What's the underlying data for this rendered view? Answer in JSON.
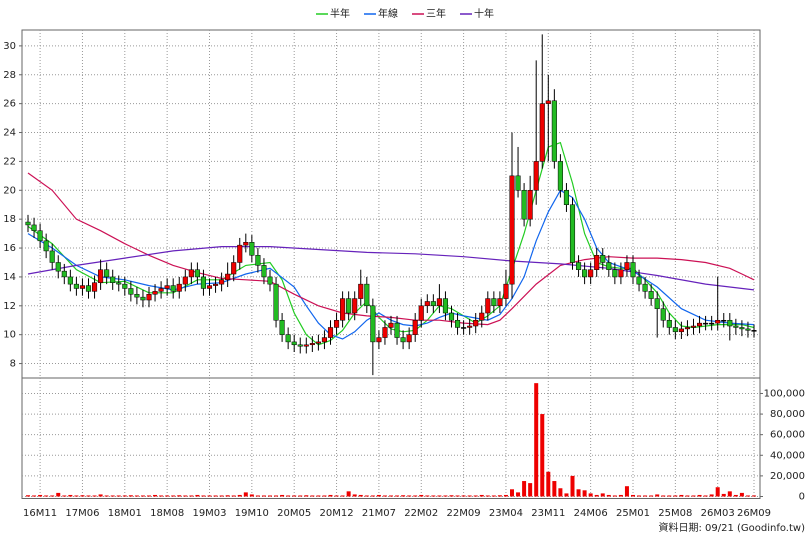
{
  "chart_data": {
    "type": "candlestick",
    "x": [
      "16M09",
      "16M10",
      "16M11",
      "16M12",
      "17M01",
      "17M02",
      "17M03",
      "17M04",
      "17M05",
      "17M06",
      "17M07",
      "17M08",
      "17M09",
      "17M10",
      "17M11",
      "17M12",
      "18M01",
      "18M02",
      "18M03",
      "18M04",
      "18M05",
      "18M06",
      "18M07",
      "18M08",
      "18M09",
      "18M10",
      "18M11",
      "18M12",
      "19M01",
      "19M02",
      "19M03",
      "19M04",
      "19M05",
      "19M06",
      "19M07",
      "19M08",
      "19M09",
      "19M10",
      "19M11",
      "19M12",
      "20M01",
      "20M02",
      "20M03",
      "20M04",
      "20M05",
      "20M06",
      "20M07",
      "20M08",
      "20M09",
      "20M10",
      "20M11",
      "20M12",
      "21M01",
      "21M02",
      "21M03",
      "21M04",
      "21M05",
      "21M06",
      "21M07",
      "21M08",
      "21M09",
      "21M10",
      "21M11",
      "21M12",
      "22M01",
      "22M02",
      "22M03",
      "22M04",
      "22M05",
      "22M06",
      "22M07",
      "22M08",
      "22M09",
      "22M10",
      "22M11",
      "22M12",
      "23M01",
      "23M02",
      "23M03",
      "23M04",
      "23M05",
      "23M06",
      "23M07",
      "23M08",
      "23M09",
      "23M10",
      "23M11",
      "23M12",
      "24M01",
      "24M02",
      "24M03",
      "24M04",
      "24M05",
      "24M06",
      "24M07",
      "24M08",
      "24M09",
      "24M10",
      "24M11",
      "24M12",
      "25M01",
      "25M02",
      "25M03",
      "25M04",
      "25M05",
      "25M06",
      "25M07",
      "25M08",
      "25M09",
      "25M10",
      "25M11",
      "25M12",
      "26M01",
      "26M02",
      "26M03",
      "26M04",
      "26M05",
      "26M06",
      "26M07",
      "26M08",
      "26M09"
    ],
    "open": [
      17.8,
      17.6,
      17.2,
      16.5,
      15.8,
      15,
      14.4,
      14,
      13.5,
      13.2,
      13.4,
      13,
      13.6,
      14.5,
      14,
      13.6,
      13.5,
      13.2,
      12.8,
      12.6,
      12.4,
      12.8,
      13,
      13.2,
      13.4,
      13,
      13.5,
      14,
      14.5,
      14,
      13.2,
      13.4,
      13.5,
      13.8,
      14.2,
      15,
      16.2,
      16.4,
      15.5,
      14.8,
      14,
      13.5,
      11,
      10,
      9.5,
      9.3,
      9.2,
      9.3,
      9.4,
      9.5,
      9.8,
      10.5,
      11,
      12.5,
      11.5,
      12.5,
      13.5,
      12,
      9.5,
      9.8,
      10.5,
      10.8,
      9.8,
      9.5,
      10,
      11,
      12,
      12.3,
      12,
      12.5,
      11.5,
      11,
      10.5,
      10.5,
      10.6,
      11,
      11.5,
      12.5,
      12,
      12.5,
      13.5,
      21,
      20,
      18,
      20,
      22,
      26,
      26.2,
      22,
      20,
      19,
      15,
      14.5,
      14,
      14.5,
      15.5,
      15,
      14.5,
      14,
      14.5,
      15,
      14,
      13.5,
      13,
      12.5,
      11.8,
      11,
      10.5,
      10.2,
      10.4,
      10.5,
      10.6,
      10.8,
      10.8,
      10.8,
      11,
      11,
      10.6,
      10.5,
      10.4,
      10.3
    ],
    "high": [
      18.3,
      18.1,
      17.7,
      17,
      16.3,
      15.5,
      14.9,
      14.5,
      14,
      13.9,
      13.9,
      14.1,
      15.2,
      15,
      14.5,
      14.1,
      14,
      13.7,
      13.3,
      13.1,
      13.3,
      13.5,
      13.7,
      13.9,
      13.9,
      14,
      14.5,
      15,
      15,
      14.5,
      13.9,
      14,
      14.3,
      15,
      15.5,
      16.7,
      17,
      16.9,
      16,
      15.3,
      14.5,
      14,
      11.5,
      10.5,
      10,
      9.8,
      9.8,
      9.9,
      10,
      10.3,
      11,
      11.5,
      13,
      13,
      13,
      14.5,
      14,
      12.5,
      10.3,
      11,
      11.3,
      11.3,
      10.3,
      10.5,
      11.5,
      12.5,
      12.8,
      12.8,
      13.5,
      13,
      12,
      11.5,
      11,
      11.1,
      11.5,
      12,
      13,
      13,
      13,
      14.5,
      24,
      23,
      20.5,
      21,
      29,
      30.8,
      28,
      27,
      22.5,
      20.5,
      19.5,
      15.5,
      15,
      15,
      16,
      16,
      15.5,
      15,
      15,
      15.5,
      15.5,
      14.5,
      14,
      13.5,
      13,
      12.3,
      11.5,
      11,
      10.9,
      11,
      11.1,
      11.3,
      11.3,
      11.3,
      14,
      11.5,
      11.5,
      11.1,
      11,
      10.9,
      10.7
    ],
    "low": [
      17.1,
      16.7,
      16,
      15.3,
      14.5,
      13.9,
      13.5,
      13,
      12.7,
      12.7,
      12.5,
      12.5,
      13.1,
      13.5,
      13.1,
      13,
      12.7,
      12.3,
      12.1,
      11.9,
      11.9,
      12.3,
      12.5,
      12.7,
      12.5,
      12.5,
      13,
      13.5,
      13.5,
      12.7,
      12.7,
      12.9,
      13,
      13.3,
      13.7,
      14.5,
      15.7,
      15,
      14.3,
      13.5,
      13,
      10.5,
      9.5,
      9,
      8.8,
      8.7,
      8.7,
      8.8,
      8.9,
      9,
      9.3,
      10,
      10.5,
      11,
      11,
      12,
      11.5,
      7.2,
      9,
      9.3,
      10,
      9.3,
      9,
      9,
      9.5,
      10.5,
      11.5,
      11.5,
      11.5,
      11,
      10.5,
      10,
      10,
      10,
      10.1,
      10.5,
      11,
      11.5,
      11.5,
      12,
      12.5,
      19.5,
      17.5,
      17.5,
      19,
      21.5,
      22,
      21.5,
      19.5,
      18.5,
      14.5,
      14,
      13.5,
      13.5,
      14,
      14.5,
      14,
      13.5,
      13.5,
      14,
      13.5,
      13,
      12.5,
      12,
      9.8,
      10.5,
      10,
      9.7,
      9.7,
      9.9,
      10,
      10.1,
      10.3,
      10.3,
      10.3,
      10.5,
      9.6,
      10,
      9.9,
      9.8,
      9.8
    ],
    "close": [
      17.6,
      17.2,
      16.5,
      15.8,
      15,
      14.4,
      14,
      13.5,
      13.2,
      13.4,
      13,
      13.6,
      14.5,
      14,
      13.6,
      13.5,
      13.2,
      12.8,
      12.6,
      12.4,
      12.8,
      13,
      13.2,
      13.4,
      13,
      13.5,
      14,
      14.5,
      14,
      13.2,
      13.4,
      13.5,
      13.8,
      14.2,
      15,
      16.2,
      16.4,
      15.5,
      14.8,
      14,
      13.5,
      11,
      10,
      9.5,
      9.3,
      9.2,
      9.3,
      9.4,
      9.5,
      9.8,
      10.5,
      11,
      12.5,
      11.5,
      12.5,
      13.5,
      12,
      9.5,
      9.8,
      10.5,
      10.8,
      9.8,
      9.5,
      10,
      11,
      12,
      12.3,
      12,
      12.5,
      11.5,
      11,
      10.5,
      10.5,
      10.6,
      11,
      11.5,
      12.5,
      12,
      12.5,
      13.5,
      21,
      20,
      18,
      20,
      22,
      26,
      26.2,
      22,
      20,
      19,
      15,
      14.5,
      14,
      14.5,
      15.5,
      15,
      14.5,
      14,
      14.5,
      15,
      14,
      13.5,
      13,
      12.5,
      11.8,
      11,
      10.5,
      10.2,
      10.4,
      10.5,
      10.6,
      10.8,
      10.8,
      10.8,
      11,
      11,
      10.6,
      10.5,
      10.4,
      10.3,
      10.3
    ],
    "up_color": "#ee0000",
    "down_color": "#22bb22",
    "volume": [
      1200,
      1000,
      1500,
      1000,
      1000,
      3500,
      1000,
      1500,
      1000,
      1200,
      1000,
      1000,
      2000,
      1000,
      1000,
      1000,
      1000,
      1200,
      1000,
      1000,
      1000,
      1500,
      1000,
      1000,
      1000,
      1200,
      1000,
      1000,
      1500,
      1000,
      1000,
      1000,
      1000,
      1200,
      1000,
      1500,
      4000,
      2000,
      1000,
      1000,
      1000,
      1000,
      1500,
      1000,
      1000,
      1000,
      1200,
      1000,
      1000,
      1000,
      1500,
      1000,
      1000,
      5000,
      2000,
      1500,
      1000,
      1000,
      1500,
      1000,
      1000,
      1000,
      1200,
      1000,
      1000,
      1500,
      1000,
      1000,
      1000,
      1000,
      1200,
      1000,
      1000,
      1000,
      1000,
      1500,
      1000,
      1000,
      1200,
      1500,
      7000,
      4000,
      15000,
      13000,
      110000,
      80000,
      24000,
      15000,
      8000,
      3000,
      20000,
      7000,
      6000,
      3000,
      1500,
      3000,
      1500,
      1000,
      1500,
      10000,
      1500,
      1000,
      1000,
      1000,
      2000,
      1000,
      1000,
      1000,
      1500,
      1000,
      1000,
      1500,
      1000,
      2000,
      9000,
      2500,
      5000,
      1500,
      3500,
      1000,
      1000
    ],
    "volume_color": "#ee0000",
    "series": [
      {
        "name": "半年",
        "color": "#22cc22",
        "x": [
          "16M09",
          "17M01",
          "17M05",
          "17M09",
          "18M01",
          "18M05",
          "18M09",
          "19M01",
          "19M05",
          "19M09",
          "20M01",
          "20M03",
          "20M05",
          "20M07",
          "20M09",
          "20M11",
          "21M01",
          "21M03",
          "21M05",
          "21M07",
          "21M09",
          "21M11",
          "22M01",
          "22M03",
          "22M05",
          "22M07",
          "22M09",
          "22M11",
          "23M01",
          "23M03",
          "23M05",
          "23M07",
          "23M09",
          "23M11",
          "24M01",
          "24M03",
          "24M05",
          "24M07",
          "24M09",
          "24M11",
          "25M01",
          "25M03",
          "25M05",
          "25M07",
          "25M09",
          "25M11",
          "26M03",
          "26M07",
          "26M09"
        ],
        "values": [
          17.5,
          16.3,
          14.5,
          13.6,
          13.7,
          12.9,
          12.9,
          13.8,
          13.8,
          14.8,
          15,
          13.8,
          11.5,
          10,
          9.3,
          9.6,
          10.3,
          11.5,
          12.3,
          11.2,
          10.4,
          10.2,
          10.3,
          11,
          12,
          11.8,
          11.3,
          10.8,
          11.3,
          12,
          14.5,
          17,
          20,
          23,
          23.3,
          20.5,
          17,
          15,
          14.7,
          14.6,
          14.6,
          13.8,
          12.9,
          11.5,
          10.6,
          10.5,
          10.7,
          10.7,
          10.5
        ]
      },
      {
        "name": "年線",
        "color": "#1166ee",
        "x": [
          "16M09",
          "17M01",
          "17M05",
          "17M09",
          "18M01",
          "18M05",
          "18M09",
          "19M01",
          "19M05",
          "19M09",
          "20M01",
          "20M05",
          "20M07",
          "20M09",
          "20M11",
          "21M01",
          "21M03",
          "21M05",
          "21M07",
          "21M09",
          "21M11",
          "22M01",
          "22M03",
          "22M05",
          "22M07",
          "22M09",
          "23M01",
          "23M03",
          "23M05",
          "23M07",
          "23M09",
          "23M11",
          "24M01",
          "24M03",
          "24M05",
          "24M07",
          "24M09",
          "25M01",
          "25M05",
          "25M09",
          "26M01",
          "26M05",
          "26M09"
        ],
        "values": [
          17,
          16,
          14.8,
          14,
          13.8,
          13.4,
          13.1,
          13.5,
          13.6,
          14.2,
          14.6,
          13.3,
          12,
          10.8,
          10,
          9.7,
          10.2,
          11,
          11.5,
          11,
          10.7,
          10.6,
          10.8,
          11.2,
          11.5,
          11.3,
          11,
          11.4,
          12.5,
          14,
          16.5,
          18.5,
          20,
          19.5,
          18,
          16,
          15,
          14.4,
          13.3,
          11.8,
          11,
          10.8,
          10.7
        ]
      },
      {
        "name": "三年",
        "color": "#cc1155",
        "x": [
          "16M09",
          "17M01",
          "17M05",
          "17M09",
          "18M01",
          "18M05",
          "18M09",
          "19M01",
          "19M05",
          "19M09",
          "20M01",
          "20M05",
          "20M09",
          "21M01",
          "21M05",
          "21M09",
          "22M01",
          "22M05",
          "22M09",
          "23M01",
          "23M03",
          "23M05",
          "23M09",
          "24M01",
          "24M05",
          "24M09",
          "25M01",
          "25M05",
          "25M09",
          "26M01",
          "26M05",
          "26M07",
          "26M09"
        ],
        "values": [
          21.2,
          20,
          18,
          17.2,
          16.3,
          15.5,
          14.8,
          14.3,
          13.9,
          13.8,
          13.7,
          12.8,
          12,
          11.5,
          11.3,
          11.2,
          11,
          11,
          10.8,
          10.7,
          11,
          11.8,
          13.5,
          14.8,
          15.2,
          15.4,
          15.3,
          15.3,
          15.2,
          15,
          14.6,
          14.2,
          13.8
        ]
      },
      {
        "name": "十年",
        "color": "#6622bb",
        "x": [
          "16M09",
          "17M05",
          "18M01",
          "18M09",
          "19M05",
          "20M01",
          "20M09",
          "21M05",
          "22M01",
          "22M09",
          "23M05",
          "24M01",
          "24M09",
          "25M05",
          "26M01",
          "26M09"
        ],
        "values": [
          14.2,
          14.8,
          15.3,
          15.8,
          16.1,
          16.1,
          15.9,
          15.7,
          15.6,
          15.4,
          15.1,
          14.9,
          14.6,
          14.1,
          13.5,
          13.1
        ]
      }
    ],
    "xticks": [
      "16M11",
      "17M06",
      "18M01",
      "18M08",
      "19M03",
      "19M10",
      "20M05",
      "20M12",
      "21M07",
      "22M02",
      "22M09",
      "23M04",
      "23M11",
      "24M06",
      "25M01",
      "25M08",
      "26M03",
      "26M09"
    ],
    "ylim": [
      7,
      31.1
    ],
    "yticks": [
      8,
      10,
      12,
      14,
      16,
      18,
      20,
      22,
      24,
      26,
      28,
      30
    ],
    "volume_ylim": [
      0,
      115000
    ],
    "volume_yticks": [
      0,
      {
        "value": 20000,
        "label": "20,000"
      },
      {
        "value": 40000,
        "label": "40,000"
      },
      {
        "value": 60000,
        "label": "60,000"
      },
      {
        "value": 80000,
        "label": "80,000"
      },
      {
        "value": 100000,
        "label": "100,000"
      }
    ],
    "grid": true,
    "footer": "資料日期: 09/21 (Goodinfo.tw)"
  }
}
